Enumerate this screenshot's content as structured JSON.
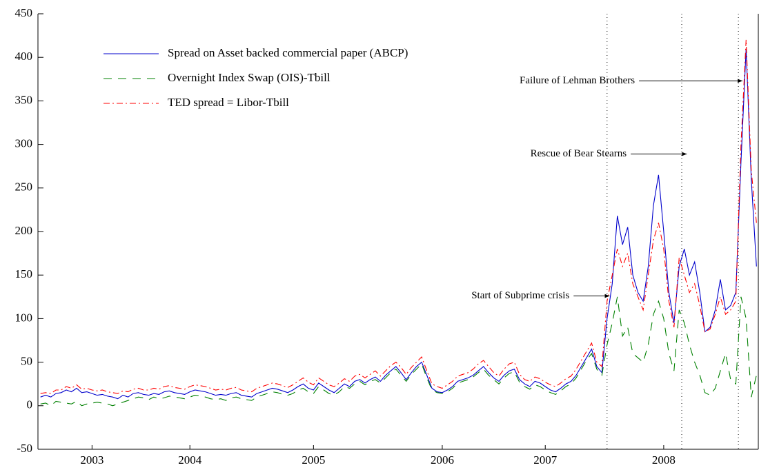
{
  "chart_data": {
    "type": "line",
    "categories": [
      null,
      null,
      null,
      null,
      null,
      null,
      null,
      null,
      null,
      null,
      "2003",
      null,
      null,
      null,
      null,
      null,
      null,
      null,
      null,
      null,
      null,
      null,
      null,
      null,
      null,
      null,
      null,
      null,
      null,
      "2004",
      null,
      null,
      null,
      null,
      null,
      null,
      null,
      null,
      null,
      null,
      null,
      null,
      null,
      null,
      null,
      null,
      null,
      null,
      null,
      null,
      null,
      null,
      null,
      "2005",
      null,
      null,
      null,
      null,
      null,
      null,
      null,
      null,
      null,
      null,
      null,
      null,
      null,
      null,
      null,
      null,
      null,
      null,
      null,
      null,
      null,
      null,
      null,
      null,
      "2006",
      null,
      null,
      null,
      null,
      null,
      null,
      null,
      null,
      null,
      null,
      null,
      null,
      null,
      null,
      null,
      null,
      null,
      null,
      null,
      "2007",
      null,
      null,
      null,
      null,
      null,
      null,
      null,
      null,
      null,
      null,
      null,
      null,
      null,
      null,
      null,
      null,
      null,
      null,
      null,
      null,
      null,
      null,
      "2008",
      null,
      null,
      null,
      null,
      null,
      null,
      null,
      null,
      null,
      null,
      null,
      null,
      null,
      null,
      null,
      null,
      null,
      null
    ],
    "series": [
      {
        "name": "Spread on Asset backed commercial paper (ABCP)",
        "color": "#0000cc",
        "dash": "none",
        "values": [
          10,
          12,
          10,
          14,
          15,
          18,
          16,
          20,
          15,
          16,
          14,
          12,
          13,
          11,
          10,
          8,
          12,
          10,
          14,
          15,
          13,
          12,
          14,
          13,
          16,
          17,
          15,
          14,
          13,
          16,
          18,
          17,
          16,
          14,
          12,
          13,
          12,
          14,
          15,
          12,
          11,
          10,
          14,
          16,
          18,
          20,
          19,
          17,
          15,
          18,
          22,
          25,
          20,
          18,
          26,
          22,
          18,
          15,
          20,
          25,
          22,
          28,
          30,
          26,
          30,
          33,
          28,
          35,
          40,
          45,
          38,
          30,
          38,
          45,
          50,
          35,
          20,
          16,
          15,
          18,
          22,
          28,
          30,
          32,
          35,
          40,
          45,
          38,
          32,
          28,
          35,
          40,
          42,
          30,
          25,
          22,
          28,
          26,
          22,
          18,
          16,
          20,
          25,
          28,
          35,
          45,
          55,
          65,
          45,
          38,
          100,
          140,
          218,
          185,
          205,
          150,
          130,
          120,
          160,
          230,
          265,
          200,
          130,
          95,
          160,
          180,
          150,
          165,
          130,
          85,
          90,
          110,
          145,
          110,
          115,
          130,
          280,
          410,
          260,
          160
        ]
      },
      {
        "name": "Overnight Index Swap (OIS)-Tbill",
        "color": "#008000",
        "dash": "12,9",
        "values": [
          2,
          3,
          0,
          5,
          4,
          3,
          2,
          5,
          0,
          2,
          3,
          4,
          3,
          2,
          0,
          2,
          4,
          6,
          8,
          10,
          9,
          7,
          10,
          8,
          9,
          11,
          10,
          9,
          8,
          10,
          12,
          11,
          10,
          8,
          7,
          8,
          6,
          9,
          10,
          8,
          7,
          6,
          10,
          12,
          14,
          16,
          15,
          13,
          12,
          14,
          18,
          20,
          16,
          14,
          22,
          18,
          14,
          12,
          16,
          22,
          20,
          25,
          28,
          24,
          28,
          30,
          26,
          32,
          38,
          42,
          35,
          28,
          36,
          42,
          48,
          32,
          18,
          15,
          14,
          16,
          20,
          26,
          28,
          30,
          33,
          38,
          42,
          35,
          30,
          25,
          32,
          37,
          39,
          27,
          22,
          19,
          24,
          22,
          18,
          15,
          13,
          17,
          22,
          25,
          32,
          42,
          52,
          60,
          42,
          35,
          70,
          95,
          125,
          80,
          90,
          60,
          55,
          50,
          70,
          105,
          120,
          100,
          60,
          40,
          110,
          95,
          70,
          50,
          35,
          15,
          12,
          20,
          40,
          60,
          30,
          25,
          125,
          100,
          10,
          35
        ]
      },
      {
        "name": "TED spread = Libor-Tbill",
        "color": "#ff0000",
        "dash": "9,4,2,4",
        "values": [
          14,
          15,
          14,
          18,
          18,
          22,
          20,
          24,
          19,
          20,
          18,
          17,
          18,
          16,
          15,
          14,
          17,
          16,
          19,
          20,
          18,
          18,
          20,
          19,
          22,
          23,
          21,
          20,
          19,
          22,
          24,
          23,
          22,
          20,
          18,
          19,
          18,
          20,
          21,
          18,
          17,
          16,
          20,
          22,
          24,
          26,
          25,
          23,
          21,
          24,
          28,
          32,
          27,
          24,
          32,
          28,
          24,
          22,
          26,
          31,
          28,
          34,
          36,
          32,
          36,
          40,
          34,
          40,
          46,
          50,
          44,
          36,
          44,
          50,
          56,
          40,
          25,
          22,
          20,
          24,
          28,
          34,
          36,
          38,
          42,
          48,
          52,
          45,
          38,
          34,
          42,
          48,
          50,
          36,
          30,
          28,
          33,
          31,
          27,
          24,
          22,
          26,
          31,
          34,
          42,
          52,
          62,
          72,
          50,
          45,
          120,
          150,
          180,
          160,
          175,
          140,
          125,
          110,
          150,
          190,
          210,
          180,
          120,
          90,
          170,
          150,
          130,
          140,
          115,
          85,
          88,
          105,
          125,
          105,
          110,
          120,
          300,
          420,
          270,
          210
        ]
      }
    ],
    "ylim": [
      -50,
      450
    ],
    "yticks": [
      -50,
      0,
      50,
      100,
      150,
      200,
      250,
      300,
      350,
      400,
      450
    ],
    "legend": "upper-left",
    "vlines": [
      110,
      124.5,
      135.5
    ],
    "annotations": [
      {
        "text": "Start of Subprime crisis",
        "x_from": 103.5,
        "x_to": 110.5,
        "y": 126
      },
      {
        "text": "Rescue of Bear Stearns",
        "x_from": 114.6,
        "x_to": 125.5,
        "y": 289
      },
      {
        "text": "Failure of Lehman Brothers",
        "x_from": 116.2,
        "x_to": 136.3,
        "y": 373
      }
    ]
  }
}
